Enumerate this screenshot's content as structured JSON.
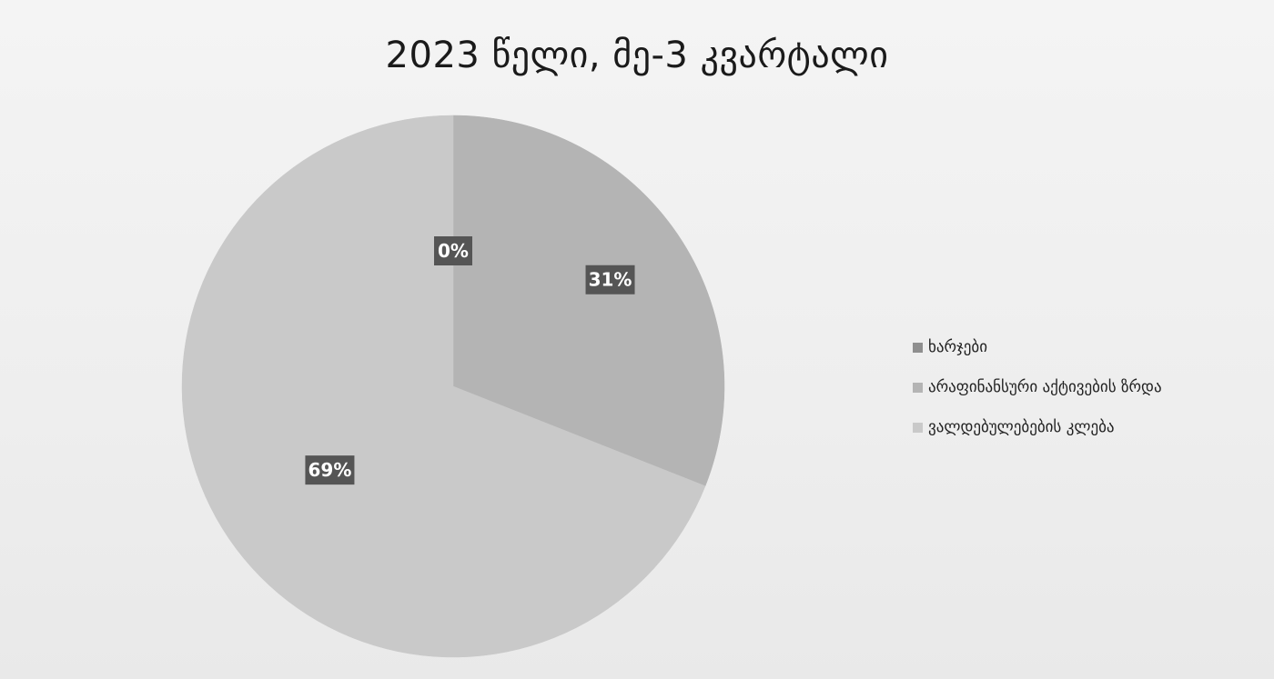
{
  "chart_data": {
    "type": "pie",
    "title": "2023 წელი, მე-3 კვარტალი",
    "categories": [
      "ხარჯები",
      "არაფინანსური აქტივების ზრდა",
      "ვალდებულებების კლება"
    ],
    "values": [
      0,
      31,
      69
    ],
    "data_labels": [
      "0%",
      "31%",
      "69%"
    ],
    "colors": [
      "#8f8f8f",
      "#b4b4b4",
      "#c9c9c9"
    ],
    "legend_position": "right"
  }
}
